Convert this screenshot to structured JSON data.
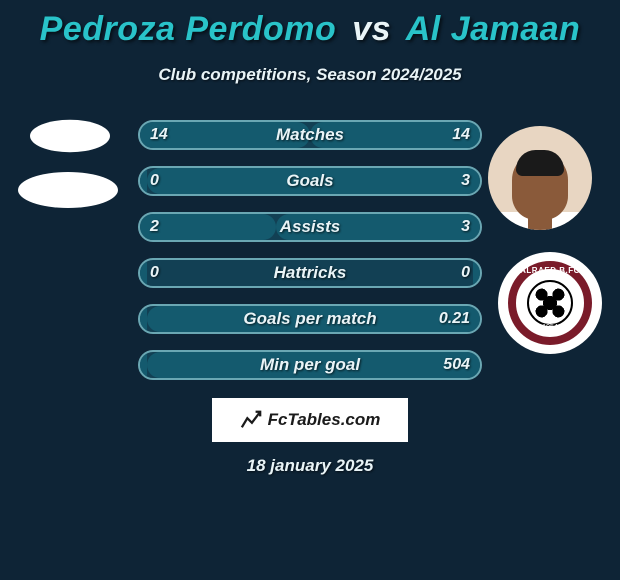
{
  "colors": {
    "background": "#0e2436",
    "text": "#e9f4f7",
    "title_player": "#29c3c9",
    "title_vs": "#e9f4f7",
    "bar_border": "#6aa7b3",
    "bar_track": "#124054",
    "bar_fill": "#145a6e",
    "fct_bg": "#ffffff",
    "fct_text": "#1b1b1b"
  },
  "title": {
    "player1": "Pedroza Perdomo",
    "vs": "vs",
    "player2": "Al Jamaan"
  },
  "subtitle": "Club competitions, Season 2024/2025",
  "stats": [
    {
      "label": "Matches",
      "left_text": "14",
      "right_text": "14",
      "left_pct": 50,
      "right_pct": 50
    },
    {
      "label": "Goals",
      "left_text": "0",
      "right_text": "3",
      "left_pct": 2,
      "right_pct": 98
    },
    {
      "label": "Assists",
      "left_text": "2",
      "right_text": "3",
      "left_pct": 40,
      "right_pct": 60
    },
    {
      "label": "Hattricks",
      "left_text": "0",
      "right_text": "0",
      "left_pct": 2,
      "right_pct": 2
    },
    {
      "label": "Goals per match",
      "left_text": "",
      "right_text": "0.21",
      "left_pct": 2,
      "right_pct": 98
    },
    {
      "label": "Min per goal",
      "left_text": "",
      "right_text": "504",
      "left_pct": 2,
      "right_pct": 98
    }
  ],
  "footer_brand": "FcTables.com",
  "date": "18 january 2025",
  "badge_right": {
    "name": "ALRAED B.FC",
    "year": "1954"
  }
}
